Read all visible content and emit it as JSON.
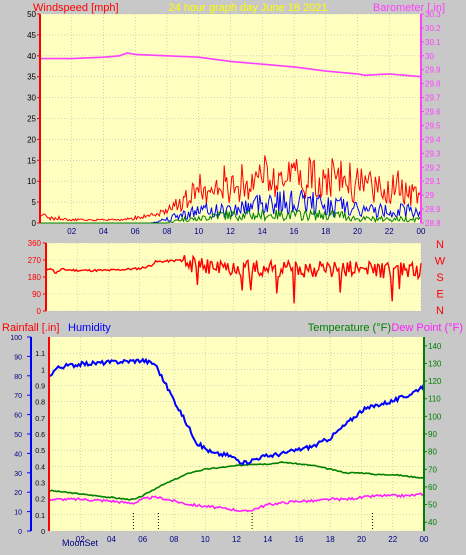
{
  "colors": {
    "background": "#c8c8c8",
    "plot": "#ffffc0",
    "grid": "#b4b4b4",
    "wind_avg": "#ff0000",
    "wind_gust_blue": "#0000ff",
    "wind_gust_green": "#008000",
    "barometer": "#ff40ff",
    "direction": "#ff0000",
    "humidity": "#0000ff",
    "temperature": "#008000",
    "dew_point": "#ff20ff",
    "title": "#ffff00",
    "left_axis": "#ff0000",
    "right_axis": "#ff40ff",
    "humidity_axis": "#0000ff",
    "temp_axis": "#008000"
  },
  "header": {
    "windspeed_label": "Windspeed [mph]",
    "title": "24 hour graph day   June 18 2021",
    "barometer_label": "Barometer [.in]"
  },
  "middle": {
    "compass": [
      "N",
      "W",
      "S",
      "E",
      "N"
    ]
  },
  "lower": {
    "rainfall_label": "Rainfall [.in]",
    "humidity_label": "Humidity",
    "temperature_label": "Temperature (°F)",
    "dewpoint_label": "Dew Point (°F)",
    "moon_label": "MoonSet"
  },
  "chart_data": [
    {
      "type": "line",
      "name": "wind-barometer",
      "x_ticks": [
        "02",
        "04",
        "06",
        "08",
        "10",
        "12",
        "14",
        "16",
        "18",
        "20",
        "22",
        "00"
      ],
      "ylim_left": [
        0,
        50
      ],
      "y_ticks_left": [
        0,
        5,
        10,
        15,
        20,
        25,
        30,
        35,
        40,
        45,
        50
      ],
      "ylim_right": [
        28.8,
        30.3
      ],
      "y_ticks_right": [
        "28.8",
        "28.9",
        "29",
        "29.1",
        "29.2",
        "29.3",
        "29.4",
        "29.5",
        "29.6",
        "29.7",
        "29.8",
        "29.9",
        "30",
        "30.1",
        "30.2",
        "30.3"
      ],
      "barometer_x": [
        0,
        2,
        4,
        5,
        5.5,
        6,
        8,
        10,
        12,
        14,
        16,
        18,
        20,
        20.5,
        22,
        23,
        24
      ],
      "barometer": [
        29.98,
        29.98,
        29.99,
        30.0,
        30.02,
        30.01,
        30.0,
        29.99,
        29.96,
        29.94,
        29.92,
        29.89,
        29.87,
        29.86,
        29.87,
        29.86,
        29.85
      ],
      "wind_x": [
        0,
        1,
        2,
        3,
        4,
        5,
        6,
        7,
        8,
        9,
        10,
        11,
        12,
        13,
        14,
        15,
        16,
        17,
        18,
        19,
        20,
        21,
        22,
        23,
        24
      ],
      "wind_avg": [
        2,
        1,
        1,
        1,
        1,
        1,
        1,
        2,
        3,
        6,
        7,
        8,
        8,
        9,
        9,
        10,
        11,
        10,
        9,
        9,
        8,
        8,
        8,
        7,
        7
      ],
      "wind_gust_high": [
        3,
        2,
        1,
        1,
        1,
        1,
        2,
        3,
        5,
        9,
        12,
        14,
        14,
        15,
        17,
        19,
        21,
        17,
        16,
        17,
        15,
        14,
        14,
        13,
        12
      ],
      "wind_blue": [
        0,
        0,
        0,
        0,
        0,
        0,
        0,
        0,
        1,
        2,
        3,
        3,
        3,
        4,
        5,
        5,
        5,
        5,
        4,
        4,
        3,
        3,
        3,
        3,
        3
      ],
      "wind_green": [
        0,
        0,
        0,
        0,
        0,
        0,
        0,
        0,
        0,
        1,
        1,
        2,
        2,
        2,
        2,
        2,
        2,
        2,
        2,
        2,
        1,
        1,
        1,
        1,
        1
      ]
    },
    {
      "type": "line",
      "name": "wind-direction",
      "ylim": [
        0,
        360
      ],
      "y_ticks": [
        0,
        90,
        180,
        270,
        360
      ],
      "x": [
        0,
        0.3,
        0.6,
        1,
        2,
        3,
        4,
        5,
        6,
        6.7,
        7,
        8,
        8.6,
        9,
        10,
        11,
        12,
        13,
        14,
        15,
        16,
        17,
        18,
        19,
        20,
        21,
        22,
        23,
        24
      ],
      "values": [
        210,
        230,
        200,
        220,
        215,
        215,
        215,
        220,
        225,
        240,
        260,
        265,
        270,
        250,
        240,
        230,
        230,
        225,
        225,
        225,
        220,
        225,
        225,
        225,
        220,
        220,
        215,
        220,
        210
      ]
    },
    {
      "type": "line",
      "name": "rain-humidity-temperature",
      "x_ticks": [
        "02",
        "04",
        "06",
        "08",
        "10",
        "12",
        "14",
        "16",
        "18",
        "20",
        "22",
        "00"
      ],
      "ylim_rain": [
        0,
        1.2
      ],
      "y_ticks_rain": [
        "0",
        "0.1",
        "0.2",
        "0.3",
        "0.4",
        "0.5",
        "0.6",
        "0.7",
        "0.8",
        "0.9",
        "1",
        "1.1"
      ],
      "ylim_humidity": [
        0,
        100
      ],
      "y_ticks_humidity": [
        0,
        10,
        20,
        30,
        40,
        50,
        60,
        70,
        80,
        90,
        100
      ],
      "ylim_temp": [
        35,
        145
      ],
      "y_ticks_temp": [
        40,
        50,
        60,
        70,
        80,
        90,
        100,
        110,
        120,
        130,
        140
      ],
      "humidity_x": [
        0,
        0.5,
        1,
        2,
        4,
        6,
        6.8,
        7.5,
        8.5,
        9.5,
        10.5,
        11.5,
        12.5,
        13.5,
        15,
        16,
        17,
        18,
        19,
        20,
        21,
        22,
        23,
        24
      ],
      "humidity": [
        80,
        84,
        85,
        86,
        87,
        88,
        86,
        75,
        60,
        45,
        40,
        39,
        35,
        38,
        40,
        42,
        44,
        48,
        55,
        62,
        65,
        67,
        70,
        75
      ],
      "temperature_x": [
        0,
        2,
        4,
        5,
        5.5,
        6,
        7,
        8,
        9,
        10,
        11,
        12,
        13,
        14,
        15,
        16,
        17,
        18,
        19,
        20,
        21,
        22,
        23,
        24
      ],
      "temperature": [
        58,
        56,
        54,
        53,
        53,
        55,
        60,
        64,
        68,
        70,
        71,
        72,
        73,
        73,
        74,
        73,
        72,
        70,
        68,
        68,
        67,
        67,
        66,
        65
      ],
      "dewpoint_x": [
        0,
        2,
        4,
        5,
        5.5,
        6,
        6.5,
        7,
        8,
        9,
        10,
        11,
        12,
        12.5,
        13,
        14,
        15,
        16,
        17,
        18,
        19,
        20,
        21,
        22,
        23,
        24
      ],
      "dewpoint": [
        53,
        53,
        52,
        51,
        51,
        53,
        54,
        54,
        52,
        50,
        49,
        48,
        47,
        46,
        47,
        50,
        51,
        52,
        52,
        53,
        53,
        54,
        55,
        55,
        55,
        56
      ],
      "rainfall": 0,
      "event_markers_x": [
        5.4,
        7,
        13,
        20.7
      ]
    }
  ]
}
